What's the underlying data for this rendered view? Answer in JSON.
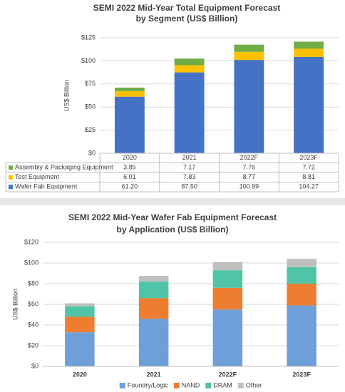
{
  "chart_data": [
    {
      "type": "stacked-bar",
      "title": "SEMI 2022 Mid-Year Total Equipment Forecast",
      "subtitle": "by Segment (US$ Billion)",
      "y_label": "US$ Billion",
      "categories": [
        "2020",
        "2021",
        "2022F",
        "2023F"
      ],
      "series": [
        {
          "name": "Wafer Fab Equipment",
          "color": "#4472c4",
          "values": [
            61.2,
            87.5,
            100.99,
            104.27
          ],
          "value_labels": [
            "61.20",
            "87.50",
            "100.99",
            "104.27"
          ]
        },
        {
          "name": "Test Equipment",
          "color": "#ffc000",
          "values": [
            6.01,
            7.83,
            8.77,
            8.81
          ]
        },
        {
          "name": "Assembly & Packaging Equipment",
          "color": "#70ad47",
          "values": [
            3.85,
            7.17,
            7.76,
            7.72
          ]
        }
      ],
      "ylim": [
        0,
        125
      ],
      "yticks": [
        {
          "value": 0,
          "label": "$0"
        },
        {
          "value": 25,
          "label": "$25"
        },
        {
          "value": 50,
          "label": "$50"
        },
        {
          "value": 75,
          "label": "$75"
        },
        {
          "value": 100,
          "label": "$100"
        },
        {
          "value": 125,
          "label": "$125"
        }
      ],
      "grid": true,
      "data_table": true
    },
    {
      "type": "stacked-bar",
      "title": "SEMI 2022 Mid-Year Wafer Fab Equipment Forecast",
      "subtitle": "by Application (US$ Billion)",
      "y_label": "US$ Billion",
      "categories": [
        "2020",
        "2021",
        "2022F",
        "2023F"
      ],
      "series": [
        {
          "name": "Foundry/Logic",
          "color": "#6f9fd8",
          "values": [
            33,
            46,
            55,
            59
          ]
        },
        {
          "name": "NAND",
          "color": "#ed7d31",
          "values": [
            15,
            20,
            21,
            21
          ]
        },
        {
          "name": "DRAM",
          "color": "#4fc4a6",
          "values": [
            10,
            16,
            17,
            16
          ]
        },
        {
          "name": "Other",
          "color": "#bfbfbf",
          "values": [
            3,
            5.5,
            8,
            8
          ]
        }
      ],
      "ylim": [
        0,
        120
      ],
      "yticks": [
        {
          "value": 0,
          "label": "$0"
        },
        {
          "value": 20,
          "label": "$20"
        },
        {
          "value": 40,
          "label": "$40"
        },
        {
          "value": 60,
          "label": "$60"
        },
        {
          "value": 80,
          "label": "$80"
        },
        {
          "value": 100,
          "label": "$100"
        },
        {
          "value": 120,
          "label": "$120"
        }
      ],
      "grid": true,
      "legend": "bottom"
    }
  ]
}
